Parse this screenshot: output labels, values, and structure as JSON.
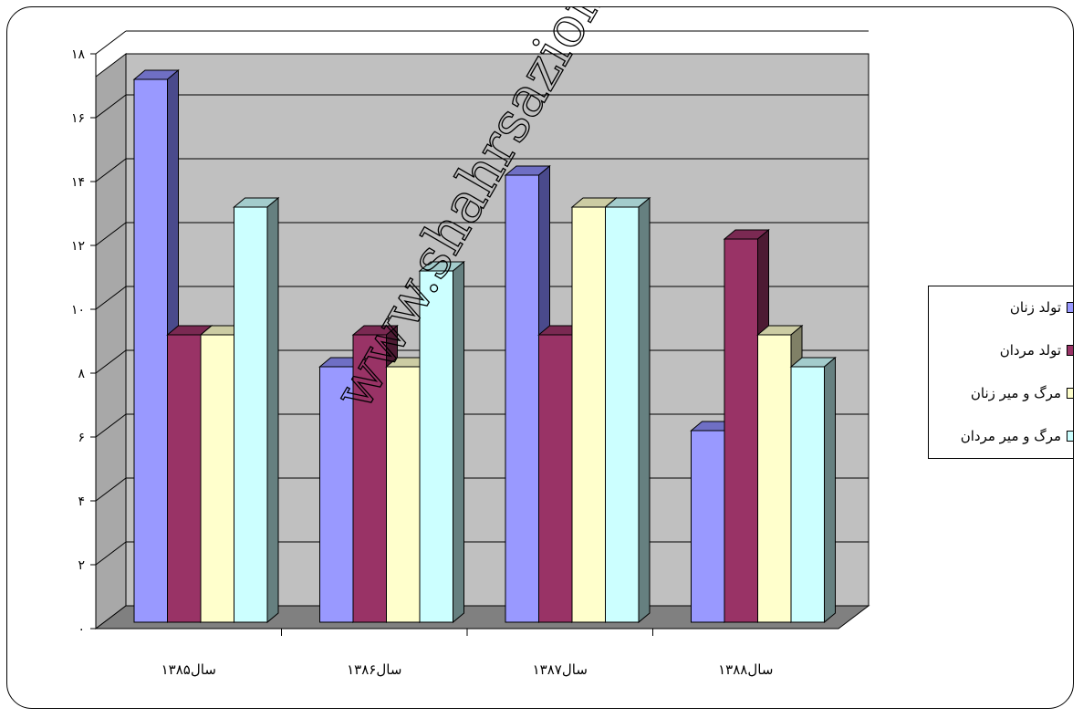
{
  "chart_data": {
    "type": "bar",
    "categories": [
      "سال۱۳۸۵",
      "سال۱۳۸۶",
      "سال۱۳۸۷",
      "سال۱۳۸۸"
    ],
    "series": [
      {
        "name": "تولد زنان",
        "values": [
          17,
          8,
          14,
          6
        ],
        "color": "#9999ff",
        "side": "#4a4a8c",
        "top": "#6f6fc4"
      },
      {
        "name": "تولد مردان",
        "values": [
          9,
          9,
          9,
          12
        ],
        "color": "#993366",
        "side": "#4d1a33",
        "top": "#7a2952"
      },
      {
        "name": "مرگ و میر زنان",
        "values": [
          9,
          8,
          13,
          9
        ],
        "color": "#ffffcc",
        "side": "#808066",
        "top": "#cccca3"
      },
      {
        "name": "مرگ و میر مردان",
        "values": [
          13,
          11,
          13,
          8
        ],
        "color": "#ccffff",
        "side": "#668080",
        "top": "#a3cccc"
      }
    ],
    "yticks": [
      "۰",
      "۲",
      "۴",
      "۶",
      "۸",
      "۱۰",
      "۱۲",
      "۱۴",
      "۱۶",
      "۱۸"
    ],
    "ylim": [
      0,
      18
    ],
    "grid": true,
    "legend_position": "right",
    "wall_color": "#c0c0c0",
    "floor_color": "#808080"
  },
  "watermark": "www.shahrsazionline.com"
}
